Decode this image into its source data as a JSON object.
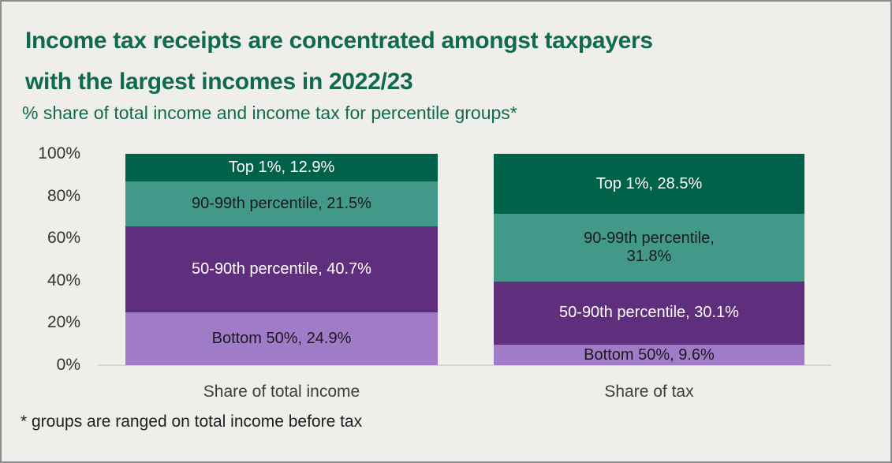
{
  "page": {
    "title_line1": "Income tax receipts are concentrated amongst taxpayers",
    "title_line2": "with the largest incomes in 2022/23",
    "subtitle": "% share of total income and income tax for percentile groups*",
    "footnote": "* groups are ranged on total income before tax"
  },
  "axis": {
    "y_ticks": [
      "100%",
      "80%",
      "60%",
      "40%",
      "20%",
      "0%"
    ]
  },
  "bars": [
    {
      "category": "Share of total income",
      "segments": [
        {
          "label": "Top 1%, 12.9%"
        },
        {
          "label": "90-99th percentile, 21.5%"
        },
        {
          "label": "50-90th percentile, 40.7%"
        },
        {
          "label": "Bottom 50%, 24.9%"
        }
      ]
    },
    {
      "category": "Share of tax",
      "segments": [
        {
          "label": "Top 1%, 28.5%"
        },
        {
          "label": "90-99th percentile,\n31.8%"
        },
        {
          "label": "50-90th percentile, 30.1%"
        },
        {
          "label": "Bottom 50%, 9.6%"
        }
      ]
    }
  ],
  "colors": {
    "title_green": "#0f6a50",
    "segment_dark_green": "#006349",
    "segment_teal": "#42998a",
    "segment_dark_purple": "#5f2e7d",
    "segment_light_purple": "#a07cc8",
    "background": "#efeeeb",
    "axis_line": "#d8d5d1",
    "dark_text": "#1a1a1a",
    "light_text": "#ffffff"
  },
  "chart_data": {
    "type": "bar",
    "subtype": "stacked-100-percent",
    "title": "Income tax receipts are concentrated amongst taxpayers with the largest incomes in 2022/23",
    "subtitle": "% share of total income and income tax for percentile groups*",
    "categories": [
      "Share of total income",
      "Share of tax"
    ],
    "series": [
      {
        "name": "Top 1%",
        "values": [
          12.9,
          28.5
        ],
        "color": "#006349"
      },
      {
        "name": "90-99th percentile",
        "values": [
          21.5,
          31.8
        ],
        "color": "#42998a"
      },
      {
        "name": "50-90th percentile",
        "values": [
          40.7,
          30.1
        ],
        "color": "#5f2e7d"
      },
      {
        "name": "Bottom 50%",
        "values": [
          24.9,
          9.6
        ],
        "color": "#a07cc8"
      }
    ],
    "xlabel": "",
    "ylabel": "",
    "ylim": [
      0,
      100
    ],
    "y_tick_interval": 20,
    "y_tick_format": "percent",
    "grid": false,
    "legend": false,
    "data_labels": "inside-segment",
    "footnote": "* groups are ranged on total income before tax"
  }
}
